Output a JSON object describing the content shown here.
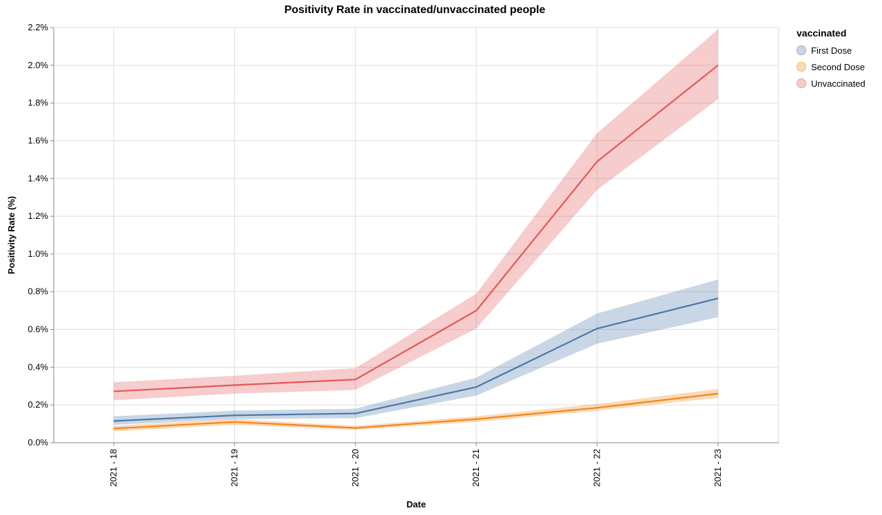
{
  "chart_data": {
    "type": "line",
    "title": "Positivity Rate in vaccinated/unvaccinated people",
    "xlabel": "Date",
    "ylabel": "Positivity Rate (%)",
    "categories": [
      "2021 - 18",
      "2021 - 19",
      "2021 - 20",
      "2021 - 21",
      "2021 - 22",
      "2021 - 23"
    ],
    "ylim": [
      0,
      2.2
    ],
    "yticks": [
      {
        "value": 0.0,
        "label": "0.0%"
      },
      {
        "value": 0.2,
        "label": "0.2%"
      },
      {
        "value": 0.4,
        "label": "0.4%"
      },
      {
        "value": 0.6,
        "label": "0.6%"
      },
      {
        "value": 0.8,
        "label": "0.8%"
      },
      {
        "value": 1.0,
        "label": "1.0%"
      },
      {
        "value": 1.2,
        "label": "1.2%"
      },
      {
        "value": 1.4,
        "label": "1.4%"
      },
      {
        "value": 1.6,
        "label": "1.6%"
      },
      {
        "value": 1.8,
        "label": "1.8%"
      },
      {
        "value": 2.0,
        "label": "2.0%"
      },
      {
        "value": 2.2,
        "label": "2.2%"
      }
    ],
    "grid": true,
    "legend_title": "vaccinated",
    "legend_position": "top-right",
    "series": [
      {
        "name": "First Dose",
        "color": "#4c78a8",
        "values": [
          0.115,
          0.145,
          0.155,
          0.295,
          0.605,
          0.765
        ],
        "lower": [
          0.095,
          0.125,
          0.13,
          0.25,
          0.525,
          0.665
        ],
        "upper": [
          0.14,
          0.17,
          0.18,
          0.345,
          0.685,
          0.865
        ]
      },
      {
        "name": "Second Dose",
        "color": "#f58518",
        "values": [
          0.075,
          0.11,
          0.078,
          0.125,
          0.185,
          0.26
        ],
        "lower": [
          0.06,
          0.095,
          0.068,
          0.11,
          0.17,
          0.238
        ],
        "upper": [
          0.09,
          0.125,
          0.09,
          0.14,
          0.205,
          0.285
        ]
      },
      {
        "name": "Unvaccinated",
        "color": "#e45756",
        "values": [
          0.272,
          0.305,
          0.335,
          0.7,
          1.49,
          2.0
        ],
        "lower": [
          0.225,
          0.26,
          0.28,
          0.605,
          1.34,
          1.82
        ],
        "upper": [
          0.32,
          0.355,
          0.395,
          0.79,
          1.64,
          2.19
        ]
      }
    ]
  }
}
